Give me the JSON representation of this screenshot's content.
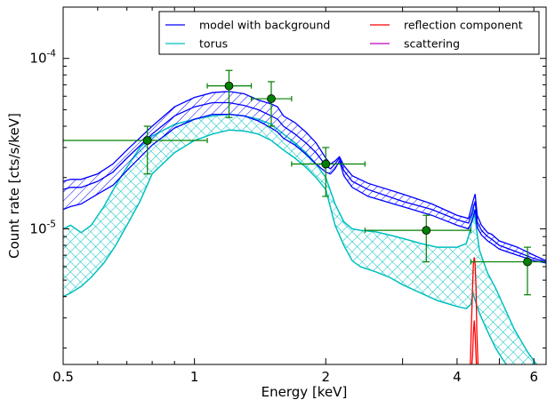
{
  "chart_data": {
    "type": "line",
    "xlabel": "Energy [keV]",
    "ylabel": "Count rate [cts/s/keV]",
    "xscale": "log",
    "yscale": "log",
    "xlim": [
      0.5,
      6.4
    ],
    "ylim": [
      1.6e-06,
      0.0002
    ],
    "grid": false,
    "legend_position": "top-right",
    "x_tick_labels": [
      {
        "value": 0.5,
        "label": "0.5"
      },
      {
        "value": 1,
        "label": "1"
      },
      {
        "value": 2,
        "label": "2"
      },
      {
        "value": 4,
        "label": "4"
      },
      {
        "value": 6,
        "label": "6"
      }
    ],
    "y_tick_labels": [
      {
        "value": 0.0001,
        "base": "10",
        "exp": "-4"
      },
      {
        "value": 1e-05,
        "base": "10",
        "exp": "-5"
      }
    ],
    "legend": [
      {
        "label": "model with background",
        "color": "#0000ff"
      },
      {
        "label": "torus",
        "color": "#00bfbf"
      },
      {
        "label": "reflection component",
        "color": "#ff0000"
      },
      {
        "label": "scattering",
        "color": "#bf00bf"
      }
    ],
    "colors": {
      "model": "#0000ff",
      "torus": "#00bfbf",
      "reflection": "#ff0000",
      "scattering": "#bf00bf",
      "data": "#008000"
    },
    "series": [
      {
        "name": "model with background",
        "x": [
          0.5,
          0.52,
          0.55,
          0.6,
          0.65,
          0.7,
          0.8,
          0.9,
          1.0,
          1.1,
          1.2,
          1.3,
          1.4,
          1.5,
          1.55,
          1.6,
          1.7,
          1.8,
          1.9,
          2.0,
          2.05,
          2.1,
          2.15,
          2.2,
          2.3,
          2.5,
          3.0,
          3.5,
          4.0,
          4.25,
          4.35,
          4.4,
          4.45,
          4.55,
          4.7,
          4.8,
          5.0,
          5.5,
          6.0,
          6.4
        ],
        "y_upper": [
          1.9e-05,
          1.95e-05,
          1.95e-05,
          2.1e-05,
          2.4e-05,
          2.9e-05,
          4e-05,
          5.2e-05,
          5.9e-05,
          6.3e-05,
          6.4e-05,
          6.2e-05,
          5.7e-05,
          5.4e-05,
          5.2e-05,
          4.6e-05,
          4.2e-05,
          3.7e-05,
          3.2e-05,
          2.6e-05,
          2.4e-05,
          2.5e-05,
          2.65e-05,
          2.35e-05,
          2.05e-05,
          1.85e-05,
          1.6e-05,
          1.4e-05,
          1.2e-05,
          1.15e-05,
          1.45e-05,
          1.6e-05,
          1.2e-05,
          1.05e-05,
          9.5e-06,
          9.3e-06,
          8.5e-06,
          7.8e-06,
          7e-06,
          6.5e-06
        ],
        "y_mid": [
          1.7e-05,
          1.75e-05,
          1.75e-05,
          1.9e-05,
          2.15e-05,
          2.6e-05,
          3.6e-05,
          4.6e-05,
          5.2e-05,
          5.5e-05,
          5.5e-05,
          5.3e-05,
          5e-05,
          4.6e-05,
          4.4e-05,
          4e-05,
          3.6e-05,
          3.2e-05,
          2.8e-05,
          2.35e-05,
          2.25e-05,
          2.4e-05,
          2.6e-05,
          2.2e-05,
          1.9e-05,
          1.7e-05,
          1.45e-05,
          1.3e-05,
          1.13e-05,
          1.08e-05,
          1.3e-05,
          1.45e-05,
          1.1e-05,
          9.8e-06,
          9e-06,
          8.7e-06,
          8e-06,
          7.3e-06,
          6.7e-06,
          6.4e-06
        ],
        "y_lower": [
          1.3e-05,
          1.35e-05,
          1.4e-05,
          1.6e-05,
          1.8e-05,
          2.2e-05,
          3.1e-05,
          3.9e-05,
          4.4e-05,
          4.7e-05,
          4.7e-05,
          4.6e-05,
          4.3e-05,
          3.9e-05,
          3.7e-05,
          3.4e-05,
          3.1e-05,
          2.75e-05,
          2.4e-05,
          2.15e-05,
          2.1e-05,
          2.25e-05,
          2.5e-05,
          2.05e-05,
          1.75e-05,
          1.55e-05,
          1.35e-05,
          1.2e-05,
          1.05e-05,
          1e-05,
          1.15e-05,
          1.3e-05,
          1.02e-05,
          9.2e-06,
          8.5e-06,
          8.2e-06,
          7.6e-06,
          7e-06,
          6.5e-06,
          6.3e-06
        ]
      },
      {
        "name": "torus",
        "x": [
          0.5,
          0.52,
          0.55,
          0.58,
          0.62,
          0.66,
          0.7,
          0.75,
          0.8,
          0.9,
          1.0,
          1.1,
          1.2,
          1.3,
          1.4,
          1.5,
          1.6,
          1.7,
          1.8,
          1.9,
          2.0,
          2.1,
          2.2,
          2.3,
          2.4,
          2.6,
          2.8,
          3.0,
          3.3,
          3.6,
          4.0,
          4.2,
          4.3,
          4.35,
          4.4,
          4.5,
          4.7,
          4.9,
          5.1,
          5.4,
          5.8,
          6.2
        ],
        "y_upper": [
          1e-05,
          1.05e-05,
          9.5e-06,
          1.05e-05,
          1.35e-05,
          1.8e-05,
          2.3e-05,
          3e-05,
          3.5e-05,
          4.1e-05,
          4.4e-05,
          4.6e-05,
          4.7e-05,
          4.6e-05,
          4.4e-05,
          4.1e-05,
          3.6e-05,
          3.2e-05,
          2.8e-05,
          2.4e-05,
          2e-05,
          1.4e-05,
          1.1e-05,
          1e-05,
          9.8e-06,
          9.6e-06,
          9.2e-06,
          8.8e-06,
          8.2e-06,
          7.8e-06,
          7.8e-06,
          8.2e-06,
          1e-05,
          1.35e-05,
          1.15e-05,
          7.5e-06,
          5.5e-06,
          4.5e-06,
          3.6e-06,
          2.6e-06,
          1.9e-06,
          1.5e-06
        ],
        "y_lower": [
          4e-06,
          4.2e-06,
          4.6e-06,
          5.2e-06,
          6.3e-06,
          8e-06,
          1.05e-05,
          1.45e-05,
          2.1e-05,
          2.8e-05,
          3.3e-05,
          3.6e-05,
          3.8e-05,
          3.75e-05,
          3.6e-05,
          3.3e-05,
          2.9e-05,
          2.6e-05,
          2.3e-05,
          2e-05,
          1.7e-05,
          1.05e-05,
          8e-06,
          6.5e-06,
          6e-06,
          5.6e-06,
          5.2e-06,
          4.7e-06,
          4.2e-06,
          3.8e-06,
          3.5e-06,
          3.4e-06,
          3.6e-06,
          4.2e-06,
          3.8e-06,
          3.2e-06,
          2.5e-06,
          2e-06,
          1.7e-06,
          1.4e-06,
          1.2e-06,
          1e-06
        ]
      },
      {
        "name": "reflection component",
        "x": [
          4.28,
          4.31,
          4.34,
          4.36,
          4.38,
          4.4,
          4.42,
          4.44,
          4.47,
          4.5
        ],
        "y_upper": [
          1.2e-06,
          2.5e-06,
          4.5e-06,
          6.2e-06,
          6.8e-06,
          6.2e-06,
          4.5e-06,
          2.5e-06,
          1.5e-06,
          1.2e-06
        ],
        "y_lower": [
          1.2e-06,
          1.4e-06,
          1.8e-06,
          2.4e-06,
          2.9e-06,
          2.4e-06,
          1.8e-06,
          1.4e-06,
          1.2e-06,
          1.2e-06
        ]
      },
      {
        "name": "data",
        "points": [
          {
            "x": 0.78,
            "xlo": 0.5,
            "xhi": 1.07,
            "y": 3.3e-05,
            "ylo": 2.1e-05,
            "yhi": 4e-05
          },
          {
            "x": 1.2,
            "xlo": 1.07,
            "xhi": 1.35,
            "y": 6.9e-05,
            "ylo": 4.5e-05,
            "yhi": 8.5e-05
          },
          {
            "x": 1.5,
            "xlo": 1.35,
            "xhi": 1.67,
            "y": 5.8e-05,
            "ylo": 4e-05,
            "yhi": 7.3e-05
          },
          {
            "x": 2.0,
            "xlo": 1.67,
            "xhi": 2.46,
            "y": 2.4e-05,
            "ylo": 1.55e-05,
            "yhi": 3e-05
          },
          {
            "x": 3.4,
            "xlo": 2.46,
            "xhi": 4.3,
            "y": 9.8e-06,
            "ylo": 6.4e-06,
            "yhi": 1.2e-05
          },
          {
            "x": 5.8,
            "xlo": 4.3,
            "xhi": 6.4,
            "y": 6.4e-06,
            "ylo": 4.1e-06,
            "yhi": 7.8e-06
          }
        ]
      }
    ]
  }
}
